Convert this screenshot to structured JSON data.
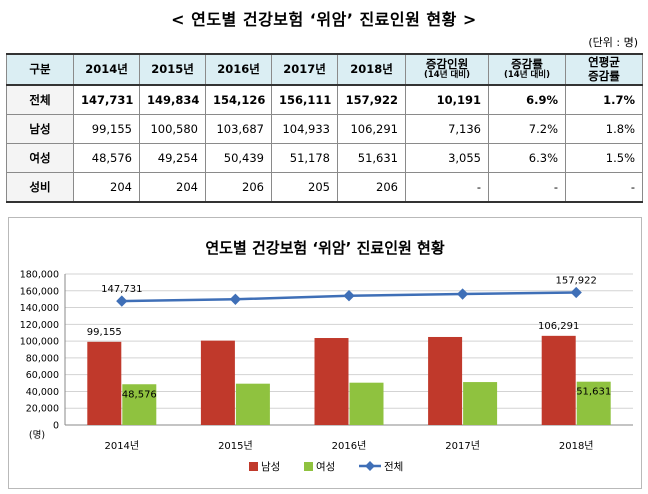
{
  "page": {
    "title": "< 연도별 건강보험 ‘위암’ 진료인원 현황 >",
    "unit": "(단위 : 명)"
  },
  "table": {
    "headers": [
      {
        "main": "구분",
        "sub": ""
      },
      {
        "main": "2014년",
        "sub": ""
      },
      {
        "main": "2015년",
        "sub": ""
      },
      {
        "main": "2016년",
        "sub": ""
      },
      {
        "main": "2017년",
        "sub": ""
      },
      {
        "main": "2018년",
        "sub": ""
      },
      {
        "main": "증감인원",
        "sub": "(14년 대비)"
      },
      {
        "main": "증감률",
        "sub": "(14년 대비)"
      },
      {
        "main": "연평균",
        "sub": "증감률"
      }
    ],
    "rows": [
      {
        "label": "전체",
        "cells": [
          "147,731",
          "149,834",
          "154,126",
          "156,111",
          "157,922",
          "10,191",
          "6.9%",
          "1.7%"
        ]
      },
      {
        "label": "남성",
        "cells": [
          "99,155",
          "100,580",
          "103,687",
          "104,933",
          "106,291",
          "7,136",
          "7.2%",
          "1.8%"
        ]
      },
      {
        "label": "여성",
        "cells": [
          "48,576",
          "49,254",
          "50,439",
          "51,178",
          "51,631",
          "3,055",
          "6.3%",
          "1.5%"
        ]
      },
      {
        "label": "성비",
        "cells": [
          "204",
          "204",
          "206",
          "205",
          "206",
          "-",
          "-",
          "-"
        ]
      }
    ]
  },
  "chart_data": {
    "type": "bar",
    "title": "연도별 건강보험 ‘위암’ 진료인원 현황",
    "categories": [
      "2014년",
      "2015년",
      "2016년",
      "2017년",
      "2018년"
    ],
    "series": [
      {
        "name": "남성",
        "kind": "bar",
        "color": "#c0392b",
        "values": [
          99155,
          100580,
          103687,
          104933,
          106291
        ]
      },
      {
        "name": "여성",
        "kind": "bar",
        "color": "#8fc23f",
        "values": [
          48576,
          49254,
          50439,
          51178,
          51631
        ]
      },
      {
        "name": "전체",
        "kind": "line",
        "color": "#3f6fb7",
        "values": [
          147731,
          149834,
          154126,
          156111,
          157922
        ]
      }
    ],
    "data_labels": [
      {
        "series": "전체",
        "index": 0,
        "text": "147,731"
      },
      {
        "series": "전체",
        "index": 4,
        "text": "157,922"
      },
      {
        "series": "남성",
        "index": 0,
        "text": "99,155"
      },
      {
        "series": "남성",
        "index": 4,
        "text": "106,291"
      },
      {
        "series": "여성",
        "index": 0,
        "text": "48,576"
      },
      {
        "series": "여성",
        "index": 4,
        "text": "51,631"
      }
    ],
    "ylim": [
      0,
      180000
    ],
    "yticks": [
      0,
      20000,
      40000,
      60000,
      80000,
      100000,
      120000,
      140000,
      160000,
      180000
    ],
    "ytick_labels": [
      "0",
      "20,000",
      "40,000",
      "60,000",
      "80,000",
      "100,000",
      "120,000",
      "140,000",
      "160,000",
      "180,000"
    ],
    "ylabel": "(명)",
    "grid": true,
    "legend_position": "bottom"
  }
}
